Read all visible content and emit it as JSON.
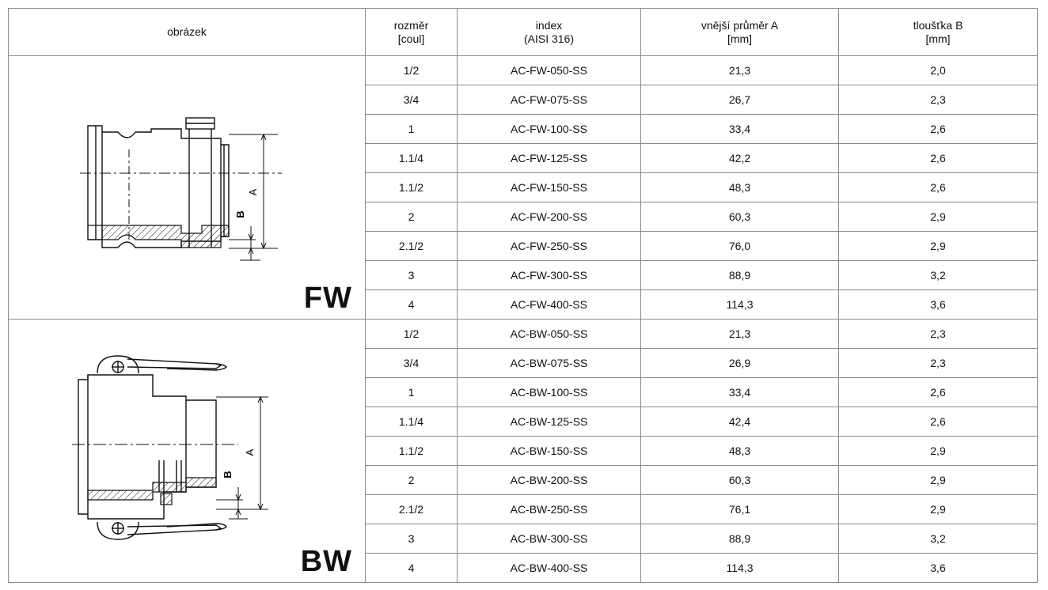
{
  "headers": {
    "picture": "obrázek",
    "size": [
      "rozměr",
      "[coul]"
    ],
    "index": [
      "index",
      "(AISI 316)"
    ],
    "outer": [
      "vnější průměr A",
      "[mm]"
    ],
    "thickness": [
      "tloušťka B",
      "[mm]"
    ]
  },
  "groups": [
    {
      "code": "FW",
      "drawing_labels": {
        "a": "A",
        "b": "B"
      },
      "rows": [
        {
          "size": "1/2",
          "index": "AC-FW-050-SS",
          "outer": "21,3",
          "thickness": "2,0"
        },
        {
          "size": "3/4",
          "index": "AC-FW-075-SS",
          "outer": "26,7",
          "thickness": "2,3"
        },
        {
          "size": "1",
          "index": "AC-FW-100-SS",
          "outer": "33,4",
          "thickness": "2,6"
        },
        {
          "size": "1.1/4",
          "index": "AC-FW-125-SS",
          "outer": "42,2",
          "thickness": "2,6"
        },
        {
          "size": "1.1/2",
          "index": "AC-FW-150-SS",
          "outer": "48,3",
          "thickness": "2,6"
        },
        {
          "size": "2",
          "index": "AC-FW-200-SS",
          "outer": "60,3",
          "thickness": "2,9"
        },
        {
          "size": "2.1/2",
          "index": "AC-FW-250-SS",
          "outer": "76,0",
          "thickness": "2,9"
        },
        {
          "size": "3",
          "index": "AC-FW-300-SS",
          "outer": "88,9",
          "thickness": "3,2"
        },
        {
          "size": "4",
          "index": "AC-FW-400-SS",
          "outer": "114,3",
          "thickness": "3,6"
        }
      ]
    },
    {
      "code": "BW",
      "drawing_labels": {
        "a": "A",
        "b": "B"
      },
      "rows": [
        {
          "size": "1/2",
          "index": "AC-BW-050-SS",
          "outer": "21,3",
          "thickness": "2,3"
        },
        {
          "size": "3/4",
          "index": "AC-BW-075-SS",
          "outer": "26,9",
          "thickness": "2,3"
        },
        {
          "size": "1",
          "index": "AC-BW-100-SS",
          "outer": "33,4",
          "thickness": "2,6"
        },
        {
          "size": "1.1/4",
          "index": "AC-BW-125-SS",
          "outer": "42,4",
          "thickness": "2,6"
        },
        {
          "size": "1.1/2",
          "index": "AC-BW-150-SS",
          "outer": "48,3",
          "thickness": "2,9"
        },
        {
          "size": "2",
          "index": "AC-BW-200-SS",
          "outer": "60,3",
          "thickness": "2,9"
        },
        {
          "size": "2.1/2",
          "index": "AC-BW-250-SS",
          "outer": "76,1",
          "thickness": "2,9"
        },
        {
          "size": "3",
          "index": "AC-BW-300-SS",
          "outer": "88,9",
          "thickness": "3,2"
        },
        {
          "size": "4",
          "index": "AC-BW-400-SS",
          "outer": "114,3",
          "thickness": "3,6"
        }
      ]
    }
  ]
}
